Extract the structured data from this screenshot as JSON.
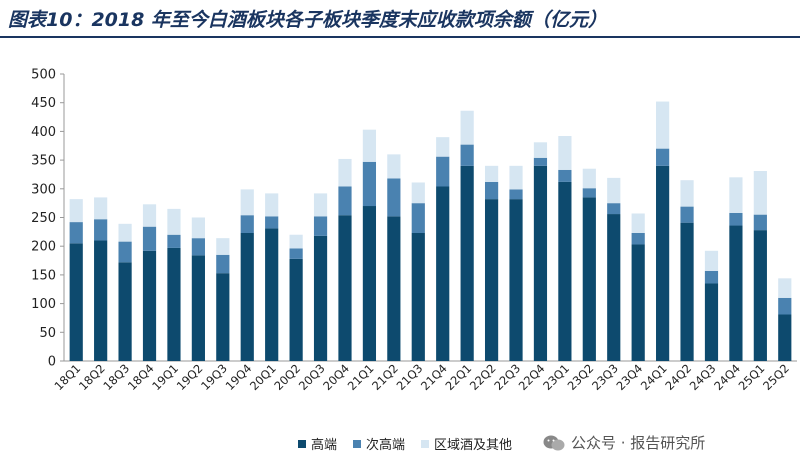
{
  "title": "图表10：2018 年至今白酒板块各子板块季度末应收款项余额（亿元）",
  "watermark": {
    "text": "公众号 · 报告研究所"
  },
  "colors": {
    "high": "#0d4a6e",
    "mid": "#4a82b0",
    "other": "#d6e6f2",
    "axis": "#999999"
  },
  "chart_data": {
    "type": "bar",
    "stacked": true,
    "title": "图表10：2018 年至今白酒板块各子板块季度末应收款项余额（亿元）",
    "xlabel": "",
    "ylabel": "",
    "ylim": [
      0,
      500
    ],
    "yticks": [
      0,
      50,
      100,
      150,
      200,
      250,
      300,
      350,
      400,
      450,
      500
    ],
    "grid": false,
    "legend_position": "bottom",
    "categories": [
      "18Q1",
      "18Q2",
      "18Q3",
      "18Q4",
      "19Q1",
      "19Q2",
      "19Q3",
      "19Q4",
      "20Q1",
      "20Q2",
      "20Q3",
      "20Q4",
      "21Q1",
      "21Q2",
      "21Q3",
      "21Q4",
      "22Q1",
      "22Q2",
      "22Q3",
      "22Q4",
      "23Q1",
      "23Q2",
      "23Q3",
      "23Q4",
      "24Q1",
      "24Q2",
      "24Q3",
      "24Q4",
      "25Q1",
      "25Q2"
    ],
    "series": [
      {
        "name": "高端",
        "color": "#0d4a6e",
        "values": [
          205,
          210,
          172,
          192,
          197,
          184,
          153,
          223,
          231,
          178,
          218,
          254,
          270,
          252,
          223,
          304,
          340,
          282,
          282,
          340,
          312,
          285,
          256,
          203,
          340,
          241,
          135,
          236,
          228,
          81
        ]
      },
      {
        "name": "次高端",
        "color": "#4a82b0",
        "values": [
          37,
          37,
          36,
          42,
          23,
          30,
          32,
          31,
          21,
          18,
          34,
          50,
          77,
          66,
          52,
          52,
          37,
          30,
          17,
          14,
          21,
          16,
          19,
          20,
          30,
          28,
          22,
          22,
          27,
          29
        ]
      },
      {
        "name": "区域酒及其他",
        "color": "#d6e6f2",
        "values": [
          40,
          38,
          31,
          39,
          45,
          36,
          29,
          45,
          40,
          24,
          40,
          48,
          56,
          42,
          36,
          34,
          59,
          28,
          41,
          27,
          59,
          34,
          44,
          34,
          82,
          46,
          35,
          62,
          76,
          34
        ]
      }
    ]
  }
}
